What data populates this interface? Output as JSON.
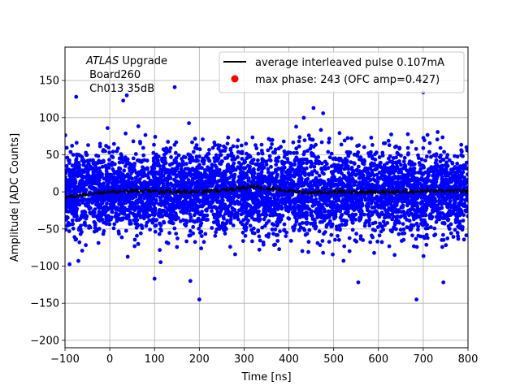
{
  "chart_data": {
    "type": "scatter",
    "title": "",
    "xlabel": "Time [ns]",
    "ylabel": "Amplitude [ADC Counts]",
    "xlim": [
      -100,
      800
    ],
    "ylim": [
      -210,
      195
    ],
    "xticks": [
      -100,
      0,
      100,
      200,
      300,
      400,
      500,
      600,
      700,
      800
    ],
    "yticks": [
      -200,
      -150,
      -100,
      -50,
      0,
      50,
      100,
      150
    ],
    "grid": true,
    "legend_position": "top-right",
    "annotation": {
      "line1_italic": "ATLAS",
      "line1_rest": " Upgrade",
      "line2": " Board260",
      "line3": " Ch013 35dB"
    },
    "series": [
      {
        "name": "average interleaved pulse 0.107mA",
        "kind": "line",
        "color": "#000000",
        "x": [
          -100,
          -50,
          0,
          50,
          100,
          150,
          200,
          250,
          300,
          320,
          350,
          400,
          450,
          500,
          550,
          600,
          650,
          700,
          750,
          800
        ],
        "y": [
          -8,
          -3,
          0,
          1,
          1,
          0,
          0,
          2,
          6,
          7,
          5,
          1,
          -1,
          0,
          0,
          0,
          0,
          1,
          1,
          1
        ]
      },
      {
        "name": "max phase: 243 (OFC amp=0.427)",
        "kind": "marker",
        "color": "#ff0000",
        "x": [],
        "y": []
      },
      {
        "name": "samples",
        "kind": "scatter",
        "color": "#0000ff",
        "x_range": [
          -100,
          800
        ],
        "noise_sigma": 28,
        "outliers": [
          {
            "x": 30,
            "y": 123
          },
          {
            "x": 38,
            "y": 130
          },
          {
            "x": 145,
            "y": 141
          },
          {
            "x": 455,
            "y": 113
          },
          {
            "x": 700,
            "y": 134
          },
          {
            "x": -75,
            "y": 128
          },
          {
            "x": 200,
            "y": -145
          },
          {
            "x": 685,
            "y": -145
          },
          {
            "x": 100,
            "y": -117
          },
          {
            "x": 180,
            "y": -120
          },
          {
            "x": 555,
            "y": -122
          },
          {
            "x": 745,
            "y": -122
          }
        ]
      }
    ]
  }
}
